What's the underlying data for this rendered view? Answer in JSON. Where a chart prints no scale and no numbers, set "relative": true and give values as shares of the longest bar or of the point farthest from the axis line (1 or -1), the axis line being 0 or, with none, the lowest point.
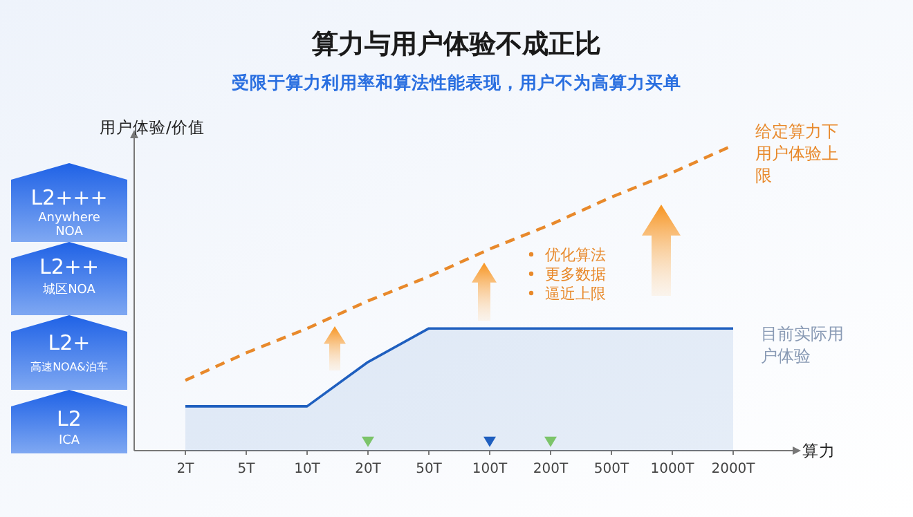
{
  "chart_data": {
    "type": "area",
    "title": "算力与用户体验不成正比",
    "subtitle": "受限于算力利用率和算法性能表现，用户不为高算力买单",
    "xlabel": "算力",
    "ylabel": "用户体验/价值",
    "relative": true,
    "categories": [
      "2T",
      "5T",
      "10T",
      "20T",
      "50T",
      "100T",
      "200T",
      "500T",
      "1000T",
      "2000T"
    ],
    "series": [
      {
        "name": "给定算力下用户体验上限",
        "type": "line",
        "line_style": "dashed",
        "color": "#e8892b",
        "values": [
          0.23,
          0.32,
          0.4,
          0.49,
          0.57,
          0.66,
          0.74,
          0.83,
          0.91,
          1
        ]
      },
      {
        "name": "目前实际用户体验",
        "color": "#1f5fbf",
        "values": [
          0.145,
          0.145,
          0.145,
          0.29,
          0.4,
          0.4,
          0.4,
          0.4,
          0.4,
          0.4
        ]
      },
      {
        "type": "scatter",
        "marker": "triangle",
        "x": [
          "20T",
          "100T",
          "200T"
        ],
        "values": [
          0.03,
          0.03,
          0.03
        ],
        "colors": [
          "#7cc46a",
          "#1f5fbf",
          "#7cc46a"
        ]
      }
    ],
    "annotations": [
      "L2+++\nAnywhere\nNOA",
      "L2++\n城区NOA",
      "L2+\n高速NOA&泊车",
      "L2\nICA",
      "优化算法",
      "更多数据",
      "逼近上限"
    ]
  }
}
